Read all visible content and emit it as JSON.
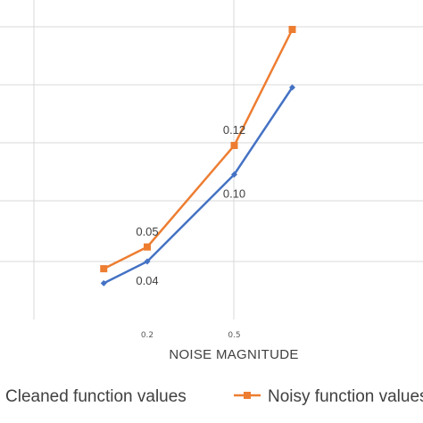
{
  "chart_data": {
    "type": "line",
    "xlabel": "NOISE MAGNITUDE",
    "x_ticks": [
      "0.2",
      "0.5"
    ],
    "x": [
      0.05,
      0.2,
      0.5,
      0.7
    ],
    "series": [
      {
        "name": "Cleaned function values",
        "color": "#4472C4",
        "marker": "diamond",
        "values": [
          0.025,
          0.04,
          0.1,
          0.16
        ],
        "data_labels": [
          "",
          "0.04",
          "0.10",
          ""
        ]
      },
      {
        "name": "Noisy function values",
        "color": "#ED7D31",
        "marker": "square",
        "values": [
          0.035,
          0.05,
          0.12,
          0.2
        ],
        "data_labels": [
          "",
          "0.05",
          "0.12",
          ""
        ]
      }
    ],
    "legend_position": "bottom",
    "grid": true
  }
}
